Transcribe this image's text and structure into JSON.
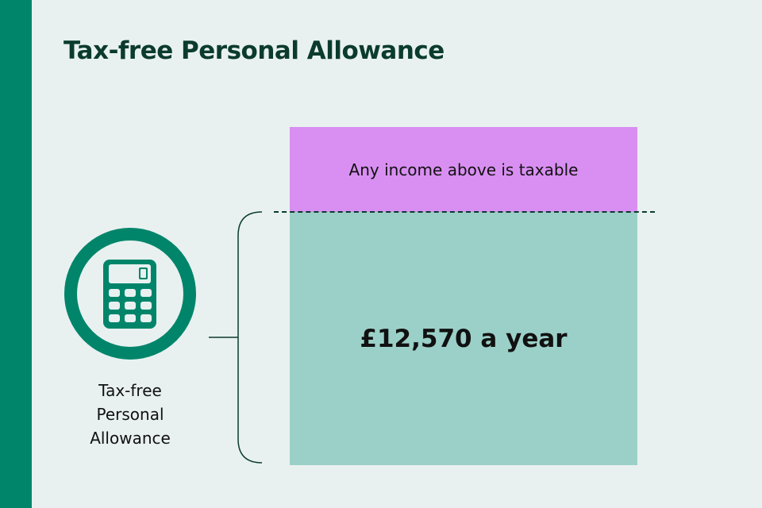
{
  "title": "Tax-free Personal Allowance",
  "taxable_band": {
    "label": "Any income above is taxable",
    "color": "#d98ff2"
  },
  "allowance_band": {
    "label": "£12,570 a year",
    "color": "#9bd0c8"
  },
  "icon": {
    "name": "calculator-icon",
    "caption_lines": [
      "Tax-free",
      "Personal",
      "Allowance"
    ],
    "color": "#00856a"
  },
  "accent_color": "#00856a"
}
